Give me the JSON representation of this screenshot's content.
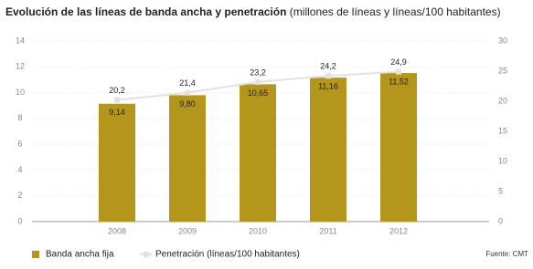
{
  "chart_data": {
    "type": "bar_line",
    "title": "Evolución de las líneas de banda ancha y penetración",
    "subtitle": "(millones de líneas y líneas/100 habitantes)",
    "source": "Fuente: CMT",
    "categories": [
      "2008",
      "2009",
      "2010",
      "2011",
      "2012"
    ],
    "series": [
      {
        "name": "Banda ancha fija",
        "type": "bar",
        "color": "#b5961c",
        "axis": "y",
        "values": [
          9.14,
          9.8,
          10.65,
          11.16,
          11.52
        ],
        "value_labels": [
          "9,14",
          "9,80",
          "10,65",
          "11,16",
          "11,52"
        ]
      },
      {
        "name": "Penetración (líneas/100 habitantes)",
        "type": "line",
        "color": "#e2e2e2",
        "axis": "y2",
        "values": [
          20.2,
          21.4,
          23.2,
          24.2,
          24.9
        ],
        "value_labels": [
          "20,2",
          "21,4",
          "23,2",
          "24,2",
          "24,9"
        ]
      }
    ],
    "ylim": [
      0,
      14
    ],
    "yticks": [
      0,
      2,
      4,
      6,
      8,
      10,
      12,
      14
    ],
    "y2lim": [
      0,
      30
    ],
    "y2ticks": [
      0,
      5,
      10,
      15,
      20,
      25,
      30
    ],
    "grid": true
  }
}
